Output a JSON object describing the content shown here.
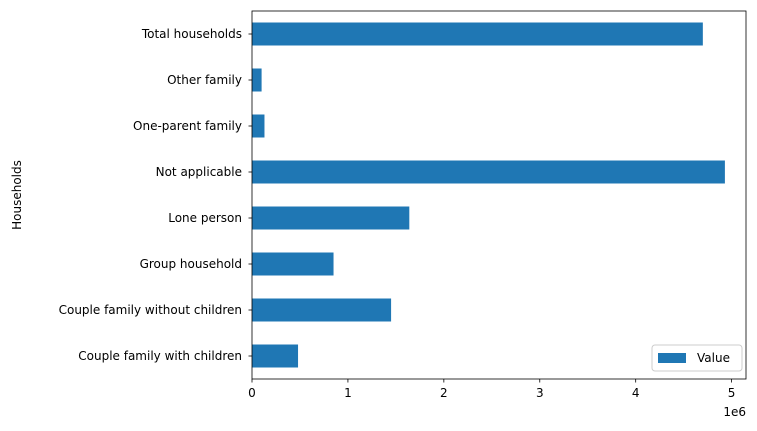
{
  "chart_data": {
    "type": "bar",
    "orientation": "horizontal",
    "ylabel": "Households",
    "xlabel": "",
    "categories": [
      "Couple family with children",
      "Couple family without children",
      "Group household",
      "Lone person",
      "Not applicable",
      "One-parent family",
      "Other family",
      "Total households"
    ],
    "series": [
      {
        "name": "Value",
        "color": "#1f77b4",
        "values": [
          480000,
          1450000,
          850000,
          1640000,
          4930000,
          130000,
          100000,
          4700000
        ]
      }
    ],
    "xlim": [
      0,
      5150000
    ],
    "xticks": [
      0,
      1,
      2,
      3,
      4,
      5
    ],
    "x_offset_label": "1e6",
    "legend": {
      "placement": "lower-right",
      "entries": [
        "Value"
      ]
    },
    "grid": false
  }
}
